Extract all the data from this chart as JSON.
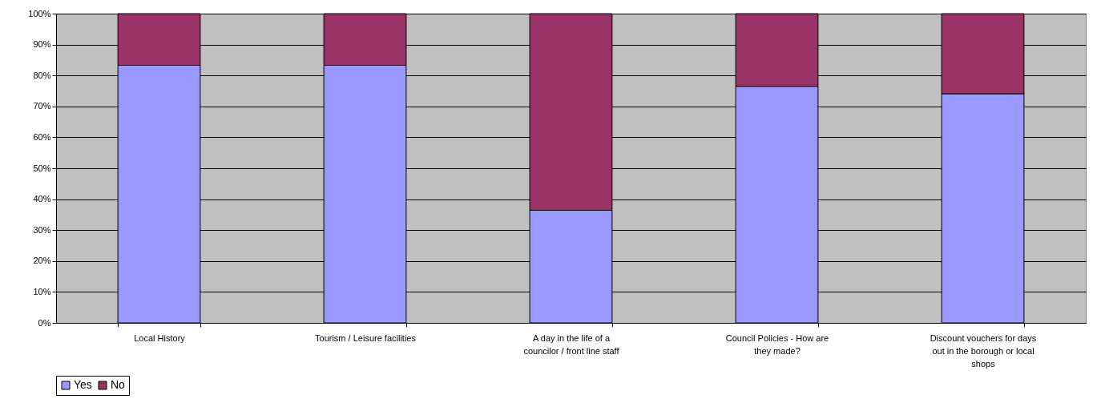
{
  "chart_data": {
    "type": "bar",
    "stacked": true,
    "categories": [
      "Local History",
      "Tourism / Leisure facilities",
      "A day in the life of a councilor / front line staff",
      "Council Policies - How are they made?",
      "Discount vouchers for days out in the borough or local shops"
    ],
    "series": [
      {
        "name": "Yes",
        "color": "#9999ff",
        "values": [
          83.3,
          83.3,
          36.4,
          76.5,
          74.1
        ]
      },
      {
        "name": "No",
        "color": "#993366",
        "values": [
          16.7,
          16.7,
          63.6,
          23.5,
          25.9
        ]
      }
    ],
    "ylim": [
      0,
      100
    ],
    "yticks": [
      {
        "value": 0,
        "label": "0%"
      },
      {
        "value": 10,
        "label": "10%"
      },
      {
        "value": 20,
        "label": "20%"
      },
      {
        "value": 30,
        "label": "30%"
      },
      {
        "value": 40,
        "label": "40%"
      },
      {
        "value": 50,
        "label": "50%"
      },
      {
        "value": 60,
        "label": "60%"
      },
      {
        "value": 70,
        "label": "70%"
      },
      {
        "value": 80,
        "label": "80%"
      },
      {
        "value": 90,
        "label": "90%"
      },
      {
        "value": 100,
        "label": "100%"
      }
    ],
    "grid": "y",
    "legend": "bottom"
  }
}
